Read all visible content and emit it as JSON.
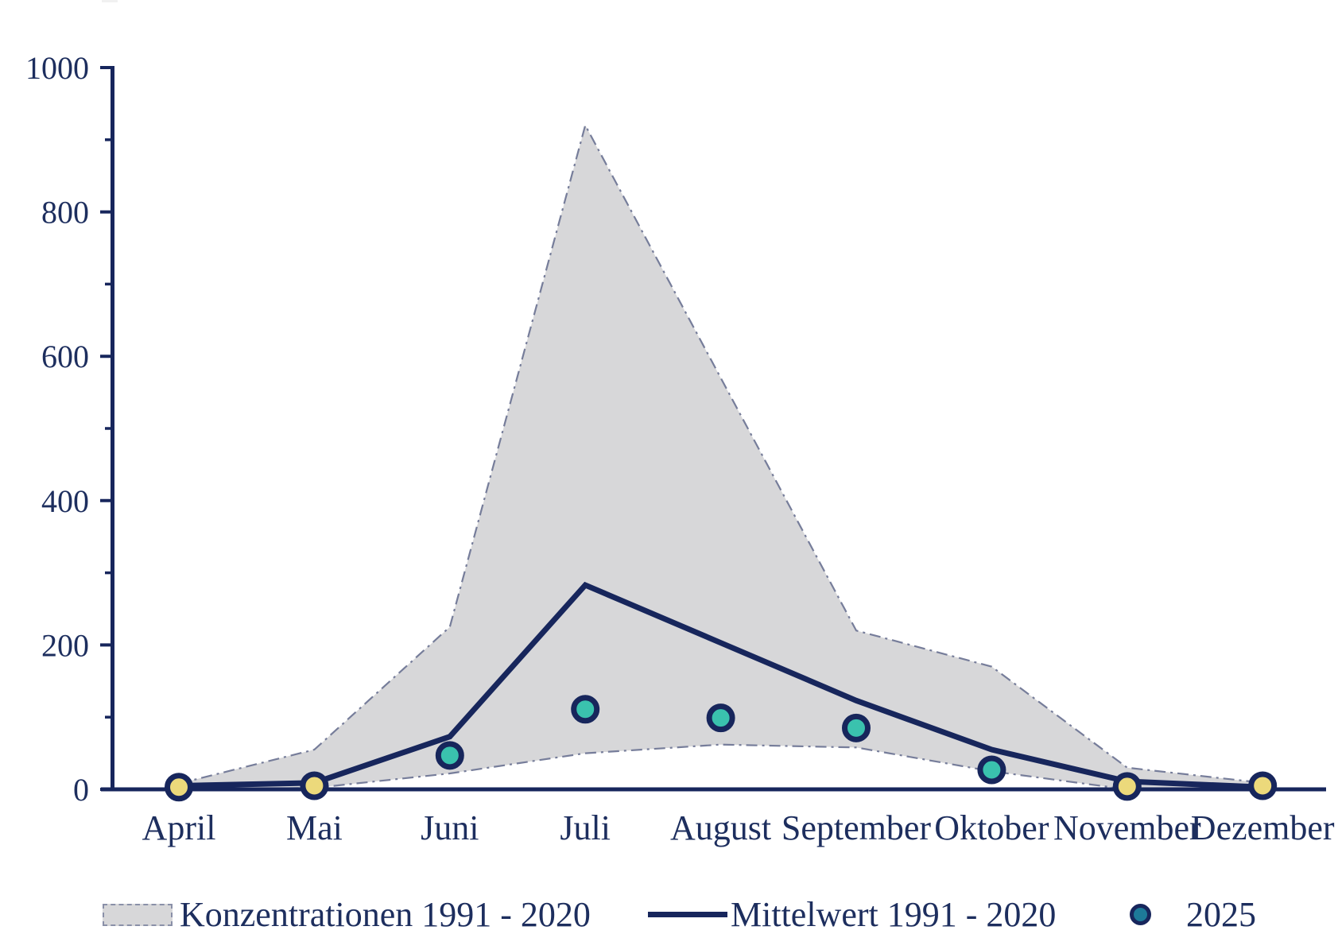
{
  "colors": {
    "navy": "#17265c",
    "text": "#1d2e5e",
    "band_fill": "#d7d7d9",
    "band_border": "#767d9a",
    "teal": "#3ac2ae",
    "yellow": "#ecd97b",
    "legend_dot": "#1d7a99"
  },
  "chart_data": {
    "type": "line",
    "title": "",
    "xlabel": "",
    "ylabel": "",
    "x": [
      "April",
      "Mai",
      "Juni",
      "Juli",
      "August",
      "September",
      "Oktober",
      "November",
      "Dezember"
    ],
    "ylim": [
      0,
      1000
    ],
    "yticks_major": [
      0,
      200,
      400,
      600,
      800,
      1000
    ],
    "ytick_labels": [
      "0",
      "200",
      "400",
      "600",
      "800",
      "1000"
    ],
    "yticks_minor": [
      100,
      300,
      500,
      700,
      900
    ],
    "grid": "off",
    "legend_position": "bottom",
    "series": [
      {
        "name": "Konzentrationen 1991 - 2020",
        "type": "band",
        "upper": [
          8,
          55,
          225,
          920,
          570,
          220,
          170,
          30,
          9
        ],
        "lower": [
          0,
          2,
          22,
          50,
          62,
          58,
          25,
          0,
          2
        ]
      },
      {
        "name": "Mittelwert 1991 - 2020",
        "type": "line",
        "values": [
          5,
          9,
          73,
          283,
          203,
          123,
          55,
          11,
          3
        ]
      },
      {
        "name": "2025",
        "type": "scatter",
        "values": [
          3,
          5,
          47,
          111,
          99,
          85,
          27,
          4,
          5
        ],
        "point_colors": [
          "yellow",
          "yellow",
          "teal",
          "teal",
          "teal",
          "teal",
          "teal",
          "yellow",
          "yellow"
        ]
      }
    ]
  },
  "legend": {
    "items": [
      {
        "label": "Konzentrationen 1991 - 2020",
        "swatch": "band"
      },
      {
        "label": "Mittelwert 1991 - 2020",
        "swatch": "line"
      },
      {
        "label": "2025",
        "swatch": "point"
      }
    ]
  }
}
